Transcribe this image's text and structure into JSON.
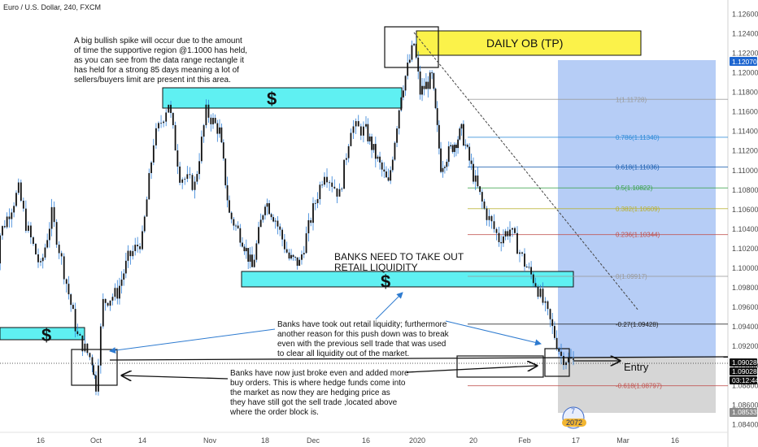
{
  "header": {
    "symbol_title": "Euro / U.S. Dollar, 240, FXCM"
  },
  "colors": {
    "zone_fill": "#5ff0f2",
    "ob_fill": "#fbf24a",
    "target_fill": "#a9c4f5",
    "stop_fill": "#cfcfcf",
    "candle": "#111111",
    "wick": "#2f7fd6",
    "current_price_bg": "#1e66d0",
    "price_tag_bg": "#111111"
  },
  "annotations": {
    "spike_note": [
      "A big bullish spike will occur due to the amount",
      "of time the supportive region @1.1000  has held,",
      "as you can see from the data range rectangle it",
      "has held for a strong 85 days meaning a lot of",
      "sellers/buyers limit are present int this area."
    ],
    "daily_ob": "DAILY OB (TP)",
    "dollar": "$",
    "banks_need": [
      "BANKS NEED TO TAKE OUT",
      "RETAIL LIQUIDITY"
    ],
    "banks_took": [
      "Banks have took out retail liquidity; furthermore",
      "another reason for this push down was to break",
      "even with the previous sell trade that was used",
      "to clear all liquidity out of the market."
    ],
    "banks_broke": [
      "Banks have now just broke even and added more",
      "buy orders. This is where hedge funds come into",
      "the market as now they are hedging price as",
      "they have still got the sell trade ,located above",
      "where the order block is."
    ],
    "entry": "Entry"
  },
  "price_tags": {
    "current": "1.12070",
    "entry1": "1.09028",
    "entry2": "1.09028",
    "timer": "03:12:44",
    "bottom": "1.08533"
  },
  "badge": {
    "top": "7",
    "bottom": "2072"
  },
  "chart_data": {
    "type": "candlestick",
    "title": "Euro / U.S. Dollar, 240, FXCM",
    "y_ticks": [
      "1.12600",
      "1.12400",
      "1.12200",
      "1.12000",
      "1.11800",
      "1.11600",
      "1.11400",
      "1.11200",
      "1.11000",
      "1.10800",
      "1.10600",
      "1.10400",
      "1.10200",
      "1.10000",
      "1.09800",
      "1.09600",
      "1.09400",
      "1.09200",
      "1.09000",
      "1.08800",
      "1.08600",
      "1.08400"
    ],
    "y_tick_values": [
      1.126,
      1.124,
      1.122,
      1.12,
      1.118,
      1.116,
      1.114,
      1.112,
      1.11,
      1.108,
      1.106,
      1.104,
      1.102,
      1.1,
      1.098,
      1.096,
      1.094,
      1.092,
      1.09,
      1.088,
      1.086,
      1.084
    ],
    "ylim": [
      1.0832,
      1.1272
    ],
    "x_ticks": [
      "16",
      "Oct",
      "14",
      "Nov",
      "18",
      "Dec",
      "16",
      "2020",
      "20",
      "Feb",
      "17",
      "Mar",
      "16"
    ],
    "fib_levels": [
      {
        "label": "1(1.11728)",
        "value": 1.11728,
        "color": "#9a9a9a"
      },
      {
        "label": "0.786(1.11340)",
        "value": 1.1134,
        "color": "#2e8bd8"
      },
      {
        "label": "0.618(1.11036)",
        "value": 1.11036,
        "color": "#1b5fb0"
      },
      {
        "label": "0.5(1.10822)",
        "value": 1.10822,
        "color": "#3aa14a"
      },
      {
        "label": "0.382(1.10609)",
        "value": 1.10609,
        "color": "#b8b030"
      },
      {
        "label": "0.236(1.10344)",
        "value": 1.10344,
        "color": "#c0504d"
      },
      {
        "label": "0(1.09917)",
        "value": 1.09917,
        "color": "#9a9a9a"
      },
      {
        "label": "-0.27(1.09428)",
        "value": 1.09428,
        "color": "#222222"
      },
      {
        "label": "-0.618(1.08797)",
        "value": 1.08797,
        "color": "#c0504d"
      }
    ],
    "price_path": [
      {
        "x": "2019-09-03",
        "y": 1.0965
      },
      {
        "x": "2019-09-05",
        "y": 1.1035
      },
      {
        "x": "2019-09-10",
        "y": 1.108
      },
      {
        "x": "2019-09-12",
        "y": 1.1045
      },
      {
        "x": "2019-09-16",
        "y": 1.1
      },
      {
        "x": "2019-09-19",
        "y": 1.1055
      },
      {
        "x": "2019-09-23",
        "y": 1.0985
      },
      {
        "x": "2019-09-26",
        "y": 1.093
      },
      {
        "x": "2019-09-30",
        "y": 1.0905
      },
      {
        "x": "2019-10-01",
        "y": 1.088
      },
      {
        "x": "2019-10-03",
        "y": 1.0965
      },
      {
        "x": "2019-10-07",
        "y": 1.0975
      },
      {
        "x": "2019-10-10",
        "y": 1.101
      },
      {
        "x": "2019-10-14",
        "y": 1.103
      },
      {
        "x": "2019-10-17",
        "y": 1.113
      },
      {
        "x": "2019-10-21",
        "y": 1.117
      },
      {
        "x": "2019-10-24",
        "y": 1.1095
      },
      {
        "x": "2019-10-28",
        "y": 1.1085
      },
      {
        "x": "2019-10-31",
        "y": 1.116
      },
      {
        "x": "2019-11-04",
        "y": 1.114
      },
      {
        "x": "2019-11-07",
        "y": 1.1055
      },
      {
        "x": "2019-11-11",
        "y": 1.103
      },
      {
        "x": "2019-11-14",
        "y": 1.1
      },
      {
        "x": "2019-11-18",
        "y": 1.107
      },
      {
        "x": "2019-11-21",
        "y": 1.105
      },
      {
        "x": "2019-11-25",
        "y": 1.101
      },
      {
        "x": "2019-11-28",
        "y": 1.1005
      },
      {
        "x": "2019-12-02",
        "y": 1.106
      },
      {
        "x": "2019-12-05",
        "y": 1.11
      },
      {
        "x": "2019-12-09",
        "y": 1.1075
      },
      {
        "x": "2019-12-12",
        "y": 1.1145
      },
      {
        "x": "2019-12-16",
        "y": 1.114
      },
      {
        "x": "2019-12-19",
        "y": 1.1115
      },
      {
        "x": "2019-12-23",
        "y": 1.1085
      },
      {
        "x": "2019-12-27",
        "y": 1.118
      },
      {
        "x": "2019-12-31",
        "y": 1.123
      },
      {
        "x": "2020-01-02",
        "y": 1.118
      },
      {
        "x": "2020-01-06",
        "y": 1.1195
      },
      {
        "x": "2020-01-09",
        "y": 1.1105
      },
      {
        "x": "2020-01-13",
        "y": 1.1125
      },
      {
        "x": "2020-01-16",
        "y": 1.114
      },
      {
        "x": "2020-01-20",
        "y": 1.1095
      },
      {
        "x": "2020-01-23",
        "y": 1.106
      },
      {
        "x": "2020-01-27",
        "y": 1.103
      },
      {
        "x": "2020-01-30",
        "y": 1.104
      },
      {
        "x": "2020-02-03",
        "y": 1.1005
      },
      {
        "x": "2020-02-06",
        "y": 1.0985
      },
      {
        "x": "2020-02-10",
        "y": 1.0945
      },
      {
        "x": "2020-02-13",
        "y": 1.091
      },
      {
        "x": "2020-02-17",
        "y": 1.0903
      }
    ]
  }
}
